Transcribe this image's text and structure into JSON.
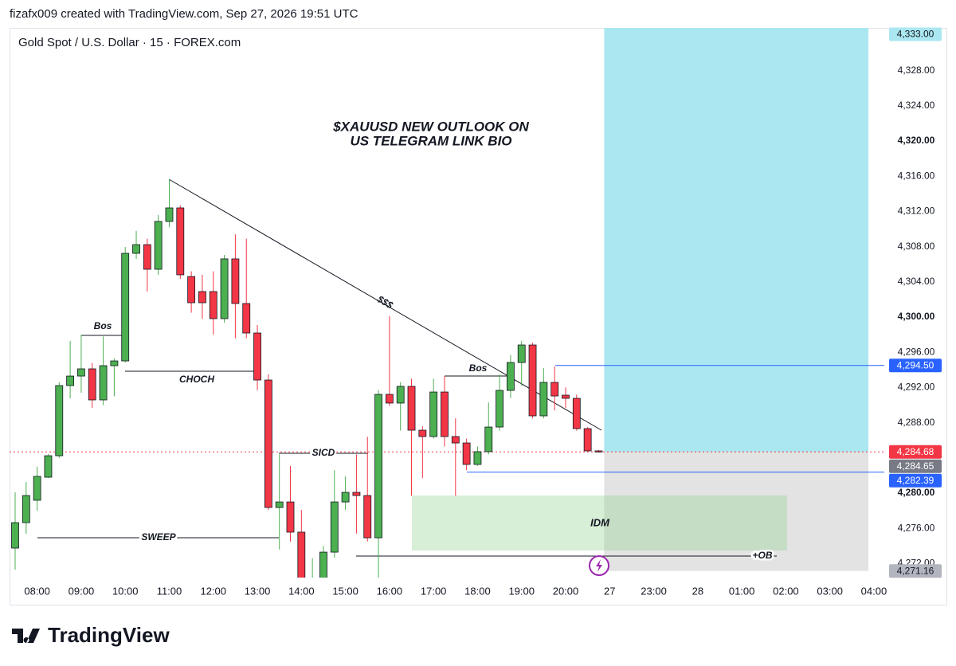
{
  "header": "fizafx009 created with TradingView.com, Sep 27, 2026 19:51 UTC",
  "footer": "TradingView",
  "chart_data": {
    "type": "candlestick",
    "title": "Gold Spot / U.S. Dollar · 15 · FOREX.com",
    "annotations": [
      "$XAUUSD NEW OUTLOOK ON",
      "US TELEGRAM LINK BIO",
      "Bos",
      "CHOCH",
      "SICD",
      "SWEEP",
      "$$$",
      "Bos",
      "IDM",
      "+OB"
    ],
    "up_color": "#4caf50",
    "down_color": "#f23645",
    "open": [
      4273.76,
      4276.65,
      4279.19,
      4281.81,
      4284.25,
      4292.22,
      4293.3,
      4294.12,
      4290.59,
      4294.48,
      4295.02,
      4307.24,
      4308.23,
      4305.43,
      4310.86,
      4312.4,
      4304.61,
      4302.9,
      4302.9,
      4299.82,
      4306.61,
      4301.54,
      4298.19,
      4292.85,
      4278.37,
      4279.0,
      4275.57,
      4269.5,
      4269.5,
      4273.3,
      4279.0,
      4280.09,
      4279.73,
      4274.93,
      4291.22,
      4290.23,
      4292.13,
      4287.15,
      4286.43,
      4291.49,
      4286.43,
      4285.7,
      4283.26,
      4284.71,
      4287.51,
      4291.67,
      4294.84,
      4296.83,
      4288.78,
      4292.58,
      4291.13,
      4290.77,
      4287.33,
      4284.8
    ],
    "high": [
      4280.09,
      4281.27,
      4283.0,
      4284.43,
      4292.6,
      4297.29,
      4298.0,
      4294.8,
      4297.8,
      4295.3,
      4307.96,
      4309.8,
      4308.9,
      4311.6,
      4315.66,
      4312.7,
      4305.2,
      4304.8,
      4305.2,
      4307.06,
      4309.4,
      4308.9,
      4299.1,
      4293.5,
      4284.4,
      4283.1,
      4278.1,
      4272.6,
      4274.0,
      4282.6,
      4281.9,
      4284.4,
      4286.4,
      4291.7,
      4300.09,
      4292.6,
      4293.0,
      4287.6,
      4293.0,
      4293.3,
      4288.5,
      4286.2,
      4285.3,
      4290.3,
      4293.5,
      4295.7,
      4297.3,
      4297.1,
      4294.2,
      4294.4,
      4292.0,
      4291.2,
      4287.5,
      4284.9
    ],
    "low": [
      4271.31,
      4275.38,
      4278.0,
      4281.72,
      4284.0,
      4290.77,
      4291.4,
      4289.68,
      4290.0,
      4291.0,
      4294.84,
      4306.6,
      4302.9,
      4304.8,
      4310.2,
      4304.34,
      4300.5,
      4299.8,
      4298.0,
      4299.37,
      4297.6,
      4297.6,
      4291.7,
      4278.1,
      4273.6,
      4274.5,
      4269.0,
      4269.0,
      4269.0,
      4272.67,
      4278.1,
      4275.4,
      4274.5,
      4270.4,
      4289.9,
      4287.1,
      4279.7,
      4281.7,
      4286.2,
      4285.3,
      4279.7,
      4282.6,
      4283.1,
      4284.4,
      4287.1,
      4290.8,
      4292.2,
      4288.5,
      4288.5,
      4289.4,
      4289.7,
      4287.1,
      4284.7,
      4284.6
    ],
    "close": [
      4276.65,
      4279.73,
      4281.9,
      4284.25,
      4292.22,
      4293.3,
      4294.12,
      4290.59,
      4294.48,
      4295.02,
      4307.24,
      4308.23,
      4305.43,
      4310.86,
      4312.4,
      4304.8,
      4301.63,
      4301.63,
      4299.82,
      4306.61,
      4301.54,
      4298.19,
      4292.85,
      4278.37,
      4279.0,
      4275.57,
      4269.6,
      4270.2,
      4273.3,
      4279.0,
      4280.09,
      4279.73,
      4274.93,
      4291.22,
      4290.23,
      4292.13,
      4287.15,
      4286.43,
      4291.49,
      4286.43,
      4285.7,
      4283.26,
      4284.71,
      4287.51,
      4291.67,
      4294.84,
      4296.83,
      4288.78,
      4292.58,
      4291.04,
      4290.77,
      4287.33,
      4284.8,
      4284.68
    ],
    "xticks": [
      {
        "value": 2,
        "label": "08:00"
      },
      {
        "value": 6,
        "label": "09:00"
      },
      {
        "value": 10,
        "label": "10:00"
      },
      {
        "value": 14,
        "label": "11:00"
      },
      {
        "value": 18,
        "label": "12:00"
      },
      {
        "value": 22,
        "label": "13:00"
      },
      {
        "value": 26,
        "label": "14:00"
      },
      {
        "value": 30,
        "label": "15:00"
      },
      {
        "value": 34,
        "label": "16:00"
      },
      {
        "value": 38,
        "label": "17:00"
      },
      {
        "value": 42,
        "label": "18:00"
      },
      {
        "value": 46,
        "label": "19:00"
      },
      {
        "value": 50,
        "label": "20:00"
      },
      {
        "value": 54,
        "label": "27"
      },
      {
        "value": 58,
        "label": "23:00"
      },
      {
        "value": 62,
        "label": "28"
      },
      {
        "value": 66,
        "label": "01:00"
      },
      {
        "value": 70,
        "label": "02:00"
      },
      {
        "value": 74,
        "label": "03:00"
      },
      {
        "value": 78,
        "label": "04:00"
      }
    ],
    "ylim": [
      4270.41,
      4332.85
    ],
    "yticks": [
      {
        "value": 4272,
        "label": "4,272.00"
      },
      {
        "value": 4276,
        "label": "4,276.00"
      },
      {
        "value": 4280,
        "label": "4,280.00"
      },
      {
        "value": 4288,
        "label": "4,288.00"
      },
      {
        "value": 4292,
        "label": "4,292.00"
      },
      {
        "value": 4296,
        "label": "4,296.00"
      },
      {
        "value": 4300,
        "label": "4,300.00"
      },
      {
        "value": 4304,
        "label": "4,304.00"
      },
      {
        "value": 4308,
        "label": "4,308.00"
      },
      {
        "value": 4312,
        "label": "4,312.00"
      },
      {
        "value": 4316,
        "label": "4,316.00"
      },
      {
        "value": 4320,
        "label": "4,320.00"
      },
      {
        "value": 4324,
        "label": "4,324.00"
      },
      {
        "value": 4328,
        "label": "4,328.00"
      }
    ],
    "grid": false,
    "price_tags": [
      {
        "value": 4333,
        "label": "4,333.00",
        "color": "#abe7f0",
        "text_color": "#131722"
      },
      {
        "value": 4294.5,
        "label": "4,294.50",
        "color": "#2962ff",
        "text_color": "#ffffff"
      },
      {
        "value": 4284.68,
        "label": "4,284.68",
        "color": "#f23645",
        "text_color": "#ffffff"
      },
      {
        "value": 4284.65,
        "label": "4,284.65",
        "color": "#787b86",
        "text_color": "#ffffff"
      },
      {
        "value": 4282.39,
        "label": "4,282.39",
        "color": "#2962ff",
        "text_color": "#ffffff"
      },
      {
        "value": 4271.16,
        "label": "4,271.16",
        "color": "#b2b5be",
        "text_color": "#131722"
      }
    ]
  }
}
